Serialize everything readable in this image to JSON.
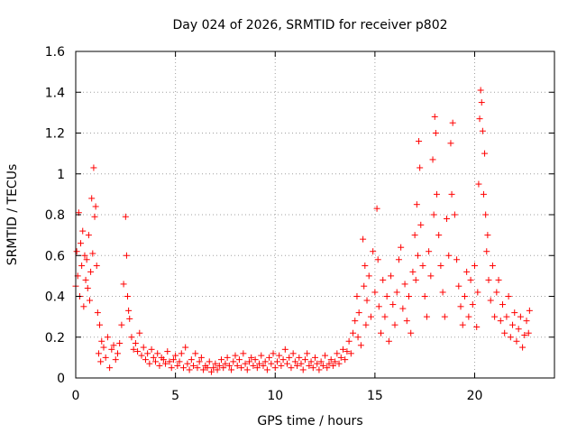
{
  "chart_data": {
    "type": "scatter",
    "title": "Day 024 of 2026, SRMTID for receiver p802",
    "xlabel": "GPS time / hours",
    "ylabel": "SRMTID / TECUs",
    "xlim": [
      0,
      24
    ],
    "ylim": [
      0,
      1.6
    ],
    "xticks": [
      0,
      5,
      10,
      15,
      20
    ],
    "xtick_labels": [
      "0",
      "5",
      "10",
      "15",
      "20"
    ],
    "yticks": [
      0,
      0.2,
      0.4,
      0.6,
      0.8,
      1,
      1.2,
      1.4,
      1.6
    ],
    "ytick_labels": [
      "0",
      "0.2",
      "0.4",
      "0.6",
      "0.8",
      "1",
      "1.2",
      "1.4",
      "1.6"
    ],
    "grid": true,
    "marker": "plus",
    "color": "#ff0000",
    "series": [
      {
        "name": "SRMTID",
        "points": [
          [
            0.0,
            0.45
          ],
          [
            0.05,
            0.62
          ],
          [
            0.1,
            0.5
          ],
          [
            0.15,
            0.81
          ],
          [
            0.2,
            0.4
          ],
          [
            0.25,
            0.66
          ],
          [
            0.3,
            0.55
          ],
          [
            0.35,
            0.72
          ],
          [
            0.4,
            0.35
          ],
          [
            0.45,
            0.6
          ],
          [
            0.5,
            0.48
          ],
          [
            0.55,
            0.58
          ],
          [
            0.6,
            0.44
          ],
          [
            0.65,
            0.7
          ],
          [
            0.7,
            0.38
          ],
          [
            0.75,
            0.52
          ],
          [
            0.8,
            0.88
          ],
          [
            0.85,
            0.61
          ],
          [
            0.9,
            1.03
          ],
          [
            0.95,
            0.79
          ],
          [
            1.0,
            0.84
          ],
          [
            1.05,
            0.55
          ],
          [
            1.1,
            0.32
          ],
          [
            1.15,
            0.12
          ],
          [
            1.2,
            0.26
          ],
          [
            1.25,
            0.08
          ],
          [
            1.3,
            0.18
          ],
          [
            1.4,
            0.15
          ],
          [
            1.5,
            0.1
          ],
          [
            1.6,
            0.2
          ],
          [
            1.7,
            0.05
          ],
          [
            1.8,
            0.14
          ],
          [
            1.9,
            0.16
          ],
          [
            2.0,
            0.09
          ],
          [
            2.1,
            0.12
          ],
          [
            2.2,
            0.17
          ],
          [
            2.3,
            0.26
          ],
          [
            2.4,
            0.46
          ],
          [
            2.5,
            0.79
          ],
          [
            2.55,
            0.6
          ],
          [
            2.6,
            0.4
          ],
          [
            2.65,
            0.33
          ],
          [
            2.7,
            0.29
          ],
          [
            2.8,
            0.2
          ],
          [
            2.9,
            0.14
          ],
          [
            3.0,
            0.17
          ],
          [
            3.1,
            0.13
          ],
          [
            3.2,
            0.22
          ],
          [
            3.3,
            0.11
          ],
          [
            3.4,
            0.15
          ],
          [
            3.5,
            0.09
          ],
          [
            3.6,
            0.12
          ],
          [
            3.7,
            0.07
          ],
          [
            3.8,
            0.14
          ],
          [
            3.9,
            0.1
          ],
          [
            4.0,
            0.08
          ],
          [
            4.1,
            0.12
          ],
          [
            4.2,
            0.06
          ],
          [
            4.3,
            0.1
          ],
          [
            4.4,
            0.09
          ],
          [
            4.5,
            0.07
          ],
          [
            4.6,
            0.13
          ],
          [
            4.7,
            0.08
          ],
          [
            4.8,
            0.05
          ],
          [
            4.9,
            0.09
          ],
          [
            5.0,
            0.11
          ],
          [
            5.1,
            0.06
          ],
          [
            5.2,
            0.08
          ],
          [
            5.3,
            0.12
          ],
          [
            5.4,
            0.05
          ],
          [
            5.5,
            0.15
          ],
          [
            5.6,
            0.07
          ],
          [
            5.7,
            0.04
          ],
          [
            5.8,
            0.09
          ],
          [
            5.9,
            0.06
          ],
          [
            6.0,
            0.12
          ],
          [
            6.1,
            0.05
          ],
          [
            6.2,
            0.08
          ],
          [
            6.3,
            0.1
          ],
          [
            6.4,
            0.04
          ],
          [
            6.5,
            0.06
          ],
          [
            6.6,
            0.05
          ],
          [
            6.7,
            0.08
          ],
          [
            6.8,
            0.03
          ],
          [
            6.9,
            0.05
          ],
          [
            7.0,
            0.07
          ],
          [
            7.1,
            0.04
          ],
          [
            7.2,
            0.06
          ],
          [
            7.3,
            0.09
          ],
          [
            7.4,
            0.05
          ],
          [
            7.5,
            0.07
          ],
          [
            7.6,
            0.1
          ],
          [
            7.7,
            0.06
          ],
          [
            7.8,
            0.04
          ],
          [
            7.9,
            0.08
          ],
          [
            8.0,
            0.11
          ],
          [
            8.1,
            0.06
          ],
          [
            8.2,
            0.09
          ],
          [
            8.3,
            0.05
          ],
          [
            8.4,
            0.12
          ],
          [
            8.5,
            0.07
          ],
          [
            8.6,
            0.04
          ],
          [
            8.7,
            0.08
          ],
          [
            8.8,
            0.1
          ],
          [
            8.9,
            0.06
          ],
          [
            9.0,
            0.09
          ],
          [
            9.1,
            0.05
          ],
          [
            9.2,
            0.07
          ],
          [
            9.3,
            0.11
          ],
          [
            9.4,
            0.06
          ],
          [
            9.5,
            0.08
          ],
          [
            9.6,
            0.04
          ],
          [
            9.7,
            0.1
          ],
          [
            9.8,
            0.07
          ],
          [
            9.9,
            0.12
          ],
          [
            10.0,
            0.05
          ],
          [
            10.1,
            0.08
          ],
          [
            10.2,
            0.11
          ],
          [
            10.3,
            0.06
          ],
          [
            10.4,
            0.09
          ],
          [
            10.5,
            0.14
          ],
          [
            10.6,
            0.07
          ],
          [
            10.7,
            0.1
          ],
          [
            10.8,
            0.05
          ],
          [
            10.9,
            0.12
          ],
          [
            11.0,
            0.08
          ],
          [
            11.1,
            0.06
          ],
          [
            11.2,
            0.1
          ],
          [
            11.3,
            0.07
          ],
          [
            11.4,
            0.04
          ],
          [
            11.5,
            0.09
          ],
          [
            11.6,
            0.12
          ],
          [
            11.7,
            0.06
          ],
          [
            11.8,
            0.08
          ],
          [
            11.9,
            0.05
          ],
          [
            12.0,
            0.1
          ],
          [
            12.1,
            0.07
          ],
          [
            12.2,
            0.04
          ],
          [
            12.3,
            0.08
          ],
          [
            12.4,
            0.06
          ],
          [
            12.5,
            0.11
          ],
          [
            12.6,
            0.05
          ],
          [
            12.7,
            0.07
          ],
          [
            12.8,
            0.09
          ],
          [
            12.9,
            0.06
          ],
          [
            13.0,
            0.08
          ],
          [
            13.1,
            0.12
          ],
          [
            13.2,
            0.07
          ],
          [
            13.3,
            0.1
          ],
          [
            13.4,
            0.14
          ],
          [
            13.5,
            0.09
          ],
          [
            13.6,
            0.13
          ],
          [
            13.7,
            0.18
          ],
          [
            13.8,
            0.12
          ],
          [
            13.9,
            0.22
          ],
          [
            14.0,
            0.28
          ],
          [
            14.1,
            0.4
          ],
          [
            14.15,
            0.2
          ],
          [
            14.2,
            0.32
          ],
          [
            14.3,
            0.16
          ],
          [
            14.4,
            0.68
          ],
          [
            14.45,
            0.45
          ],
          [
            14.5,
            0.55
          ],
          [
            14.55,
            0.26
          ],
          [
            14.6,
            0.38
          ],
          [
            14.7,
            0.5
          ],
          [
            14.8,
            0.3
          ],
          [
            14.9,
            0.62
          ],
          [
            15.0,
            0.42
          ],
          [
            15.1,
            0.83
          ],
          [
            15.15,
            0.58
          ],
          [
            15.2,
            0.35
          ],
          [
            15.3,
            0.22
          ],
          [
            15.4,
            0.48
          ],
          [
            15.5,
            0.3
          ],
          [
            15.6,
            0.4
          ],
          [
            15.7,
            0.18
          ],
          [
            15.8,
            0.5
          ],
          [
            15.9,
            0.36
          ],
          [
            16.0,
            0.26
          ],
          [
            16.1,
            0.42
          ],
          [
            16.2,
            0.58
          ],
          [
            16.3,
            0.64
          ],
          [
            16.4,
            0.34
          ],
          [
            16.5,
            0.46
          ],
          [
            16.6,
            0.28
          ],
          [
            16.7,
            0.4
          ],
          [
            16.8,
            0.22
          ],
          [
            16.9,
            0.52
          ],
          [
            17.0,
            0.7
          ],
          [
            17.05,
            0.48
          ],
          [
            17.1,
            0.85
          ],
          [
            17.15,
            0.6
          ],
          [
            17.2,
            1.16
          ],
          [
            17.25,
            1.03
          ],
          [
            17.3,
            0.75
          ],
          [
            17.4,
            0.55
          ],
          [
            17.5,
            0.4
          ],
          [
            17.6,
            0.3
          ],
          [
            17.7,
            0.62
          ],
          [
            17.8,
            0.5
          ],
          [
            17.9,
            1.07
          ],
          [
            17.95,
            0.8
          ],
          [
            18.0,
            1.28
          ],
          [
            18.05,
            1.2
          ],
          [
            18.1,
            0.9
          ],
          [
            18.2,
            0.7
          ],
          [
            18.3,
            0.55
          ],
          [
            18.4,
            0.42
          ],
          [
            18.5,
            0.3
          ],
          [
            18.6,
            0.78
          ],
          [
            18.7,
            0.6
          ],
          [
            18.8,
            1.15
          ],
          [
            18.85,
            0.9
          ],
          [
            18.9,
            1.25
          ],
          [
            19.0,
            0.8
          ],
          [
            19.1,
            0.58
          ],
          [
            19.2,
            0.45
          ],
          [
            19.3,
            0.35
          ],
          [
            19.4,
            0.26
          ],
          [
            19.5,
            0.4
          ],
          [
            19.6,
            0.52
          ],
          [
            19.7,
            0.3
          ],
          [
            19.8,
            0.48
          ],
          [
            19.9,
            0.36
          ],
          [
            20.0,
            0.55
          ],
          [
            20.1,
            0.25
          ],
          [
            20.15,
            0.42
          ],
          [
            20.2,
            0.95
          ],
          [
            20.25,
            1.27
          ],
          [
            20.3,
            1.41
          ],
          [
            20.35,
            1.35
          ],
          [
            20.4,
            1.21
          ],
          [
            20.45,
            0.9
          ],
          [
            20.5,
            1.1
          ],
          [
            20.55,
            0.8
          ],
          [
            20.6,
            0.62
          ],
          [
            20.65,
            0.7
          ],
          [
            20.7,
            0.48
          ],
          [
            20.8,
            0.38
          ],
          [
            20.9,
            0.55
          ],
          [
            21.0,
            0.3
          ],
          [
            21.1,
            0.42
          ],
          [
            21.2,
            0.48
          ],
          [
            21.3,
            0.28
          ],
          [
            21.4,
            0.36
          ],
          [
            21.5,
            0.22
          ],
          [
            21.6,
            0.3
          ],
          [
            21.7,
            0.4
          ],
          [
            21.8,
            0.2
          ],
          [
            21.9,
            0.26
          ],
          [
            22.0,
            0.32
          ],
          [
            22.1,
            0.18
          ],
          [
            22.2,
            0.24
          ],
          [
            22.3,
            0.3
          ],
          [
            22.4,
            0.15
          ],
          [
            22.5,
            0.21
          ],
          [
            22.6,
            0.28
          ],
          [
            22.7,
            0.22
          ],
          [
            22.75,
            0.33
          ]
        ]
      }
    ]
  }
}
